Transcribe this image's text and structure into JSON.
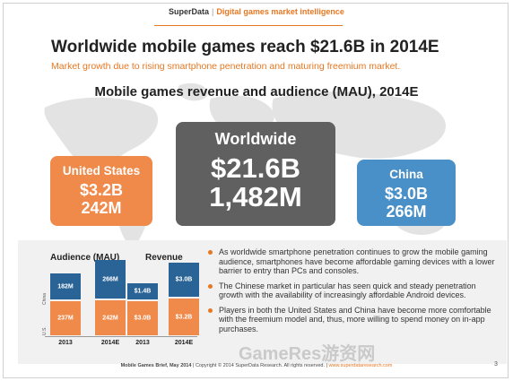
{
  "header": {
    "brand": "SuperData",
    "separator": "|",
    "tagline": "Digital games market intelligence"
  },
  "title": "Worldwide mobile games reach $21.6B in 2014E",
  "subtitle": "Market growth due to rising smartphone penetration and maturing freemium market.",
  "section_title": "Mobile games revenue and audience (MAU), 2014E",
  "boxes": {
    "us": {
      "label": "United States",
      "revenue": "$3.2B",
      "audience": "242M",
      "color": "#f08a4b"
    },
    "worldwide": {
      "label": "Worldwide",
      "revenue": "$21.6B",
      "audience": "1,482M",
      "color": "#606060"
    },
    "china": {
      "label": "China",
      "revenue": "$3.0B",
      "audience": "266M",
      "color": "#4a90c8"
    }
  },
  "chart_data": {
    "type": "bar",
    "stacked": true,
    "groups": [
      {
        "title": "Audience (MAU)",
        "categories": [
          "2013",
          "2014E"
        ],
        "series": [
          {
            "name": "U.S.",
            "values": [
              237,
              242
            ],
            "labels": [
              "237M",
              "242M"
            ],
            "color": "#f08a4b"
          },
          {
            "name": "China",
            "values": [
              182,
              266
            ],
            "labels": [
              "182M",
              "266M"
            ],
            "color": "#2a6496"
          }
        ]
      },
      {
        "title": "Revenue",
        "categories": [
          "2013",
          "2014E"
        ],
        "series": [
          {
            "name": "U.S.",
            "values": [
              3.0,
              3.2
            ],
            "labels": [
              "$3.0B",
              "$3.2B"
            ],
            "color": "#f08a4b"
          },
          {
            "name": "China",
            "values": [
              1.4,
              3.0
            ],
            "labels": [
              "$1.4B",
              "$3.0B"
            ],
            "color": "#2a6496"
          }
        ]
      }
    ],
    "vertical_labels": [
      "U.S.",
      "China"
    ]
  },
  "bullets": [
    "As worldwide smartphone penetration continues to grow the mobile gaming audience, smartphones have become affordable gaming devices with a lower barrier to entry than PCs and consoles.",
    "The Chinese market in particular has seen quick and steady penetration growth with the availability of increasingly affordable Android devices.",
    "Players in both the United States and China have become more comfortable with the freemium model and, thus, more willing to spend money on in-app purchases."
  ],
  "footer": {
    "brief": "Mobile Games Brief, May 2014",
    "copyright": "Copyright © 2014 SuperData Research. All rights reserved.",
    "url": "www.superdataresearch.com",
    "page_number": "3"
  },
  "watermark": "GameRes游资网"
}
